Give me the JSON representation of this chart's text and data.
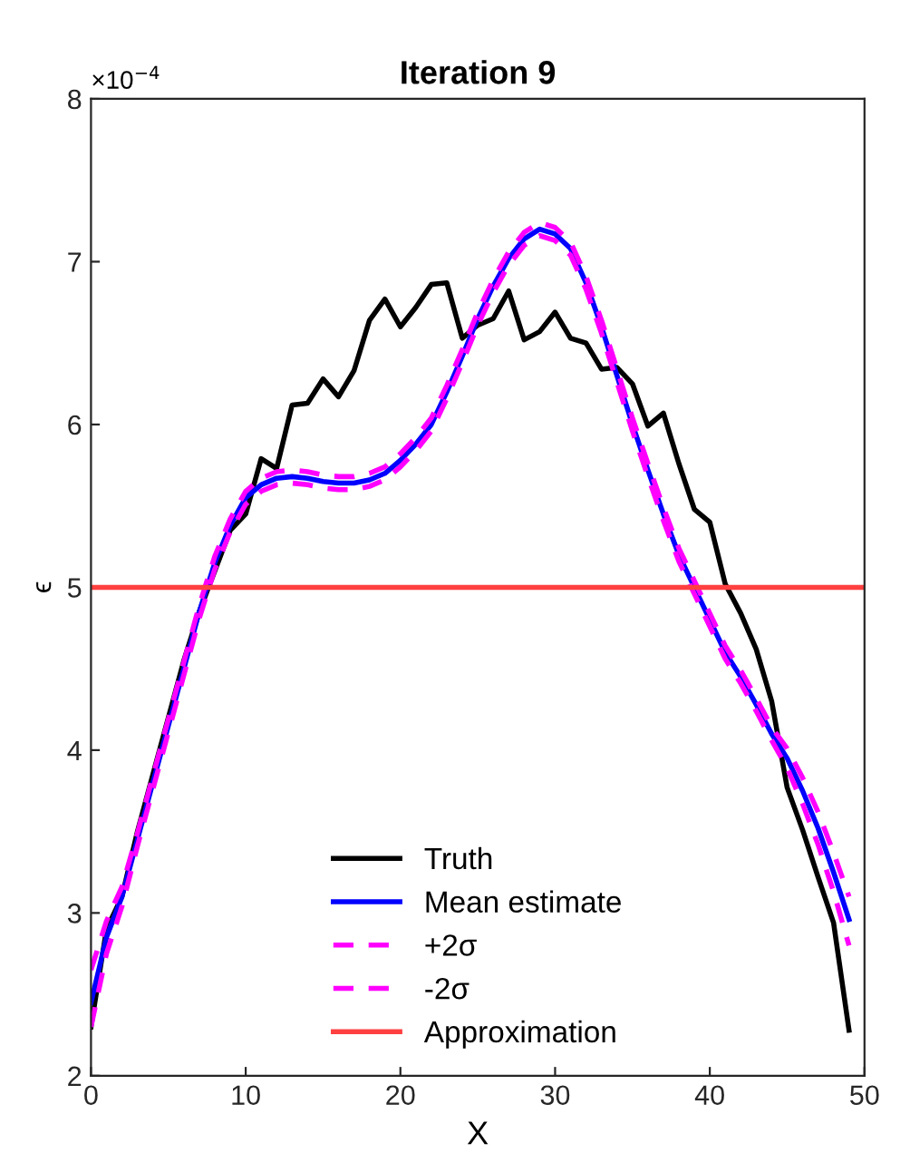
{
  "chart_data": {
    "type": "line",
    "title": "Iteration 9",
    "xlabel": "X",
    "ylabel": "ϵ",
    "annotations": [
      "×10$^{−4}$"
    ],
    "x": [
      0,
      1,
      2,
      3,
      4,
      5,
      6,
      7,
      8,
      9,
      10,
      11,
      12,
      13,
      14,
      15,
      16,
      17,
      18,
      19,
      20,
      21,
      22,
      23,
      24,
      25,
      26,
      27,
      28,
      29,
      30,
      31,
      32,
      33,
      34,
      35,
      36,
      37,
      38,
      39,
      40,
      41,
      42,
      43,
      44,
      45,
      46,
      47,
      48,
      49
    ],
    "series": [
      {
        "name": "Truth",
        "color": "#000000",
        "line_style": "solid",
        "values": [
          2.3,
          2.9,
          3.1,
          3.5,
          3.85,
          4.2,
          4.55,
          4.85,
          5.1,
          5.35,
          5.45,
          5.79,
          5.73,
          6.12,
          6.13,
          6.28,
          6.17,
          6.33,
          6.64,
          6.77,
          6.6,
          6.72,
          6.86,
          6.87,
          6.53,
          6.61,
          6.65,
          6.82,
          6.52,
          6.57,
          6.69,
          6.53,
          6.5,
          6.34,
          6.35,
          6.25,
          5.99,
          6.07,
          5.76,
          5.48,
          5.4,
          5.02,
          4.84,
          4.62,
          4.3,
          3.77,
          3.51,
          3.22,
          2.94,
          2.28
        ]
      },
      {
        "name": "Mean estimate",
        "color": "#0000ff",
        "line_style": "solid",
        "values": [
          2.45,
          2.85,
          3.1,
          3.45,
          3.8,
          4.15,
          4.5,
          4.85,
          5.15,
          5.38,
          5.55,
          5.63,
          5.67,
          5.68,
          5.67,
          5.65,
          5.64,
          5.64,
          5.66,
          5.7,
          5.78,
          5.88,
          6.0,
          6.2,
          6.42,
          6.65,
          6.85,
          7.02,
          7.14,
          7.2,
          7.17,
          7.08,
          6.87,
          6.6,
          6.3,
          6.0,
          5.72,
          5.45,
          5.2,
          5.0,
          4.8,
          4.6,
          4.45,
          4.28,
          4.1,
          3.95,
          3.75,
          3.52,
          3.25,
          2.96
        ]
      },
      {
        "name": "+2σ",
        "color": "#ff00ff",
        "line_style": "dashed",
        "values": [
          2.65,
          2.95,
          3.16,
          3.49,
          3.84,
          4.19,
          4.54,
          4.89,
          5.19,
          5.42,
          5.59,
          5.67,
          5.71,
          5.72,
          5.71,
          5.69,
          5.68,
          5.68,
          5.7,
          5.74,
          5.82,
          5.92,
          6.04,
          6.24,
          6.46,
          6.69,
          6.89,
          7.06,
          7.18,
          7.24,
          7.21,
          7.12,
          6.91,
          6.64,
          6.34,
          6.04,
          5.76,
          5.49,
          5.24,
          5.04,
          4.84,
          4.64,
          4.49,
          4.32,
          4.14,
          4.01,
          3.83,
          3.62,
          3.37,
          3.1
        ]
      },
      {
        "name": "-2σ",
        "color": "#ff00ff",
        "line_style": "dashed",
        "values": [
          2.3,
          2.75,
          3.04,
          3.41,
          3.76,
          4.11,
          4.46,
          4.81,
          5.11,
          5.34,
          5.51,
          5.59,
          5.63,
          5.64,
          5.63,
          5.61,
          5.6,
          5.6,
          5.62,
          5.66,
          5.74,
          5.84,
          5.96,
          6.16,
          6.38,
          6.61,
          6.81,
          6.98,
          7.1,
          7.16,
          7.13,
          7.04,
          6.83,
          6.56,
          6.26,
          5.96,
          5.68,
          5.41,
          5.16,
          4.96,
          4.76,
          4.56,
          4.41,
          4.24,
          4.06,
          3.89,
          3.67,
          3.42,
          3.13,
          2.8
        ]
      },
      {
        "name": "Approximation",
        "color": "#ff4040",
        "line_style": "solid",
        "x": [
          0,
          50
        ],
        "values": [
          5,
          5
        ]
      }
    ],
    "xlim": [
      0,
      50
    ],
    "xticks": [
      0,
      10,
      20,
      30,
      40,
      50
    ],
    "ylim": [
      2,
      8
    ],
    "yticks": [
      2,
      3,
      4,
      5,
      6,
      7,
      8
    ],
    "grid": false,
    "legend": "bottom",
    "marker": "none"
  }
}
